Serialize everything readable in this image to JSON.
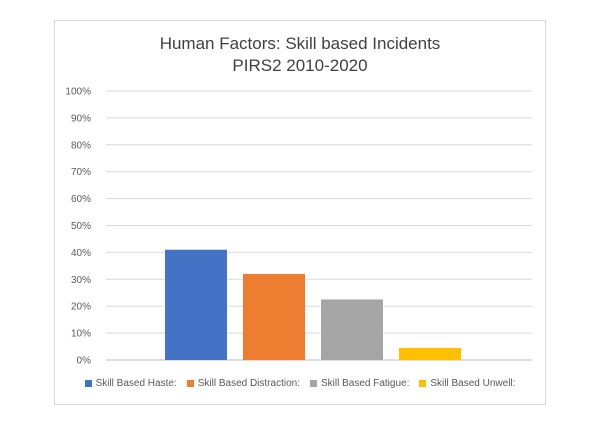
{
  "chart_data": {
    "type": "bar",
    "title_lines": [
      "Human Factors: Skill based Incidents",
      "PIRS2 2010-2020"
    ],
    "xlabel": "",
    "ylabel": "",
    "ylim": [
      0,
      1
    ],
    "yticks": [
      "0%",
      "10%",
      "20%",
      "30%",
      "40%",
      "50%",
      "60%",
      "70%",
      "80%",
      "90%",
      "100%"
    ],
    "grid": true,
    "legend_position": "bottom",
    "series": [
      {
        "name": "Skill Based Haste:",
        "value": 0.41,
        "color": "#4472C4"
      },
      {
        "name": "Skill Based Distraction:",
        "value": 0.32,
        "color": "#ED7D31"
      },
      {
        "name": "Skill Based Fatigue:",
        "value": 0.225,
        "color": "#A5A5A5"
      },
      {
        "name": "Skill Based Unwell:",
        "value": 0.045,
        "color": "#FFC000"
      }
    ]
  }
}
